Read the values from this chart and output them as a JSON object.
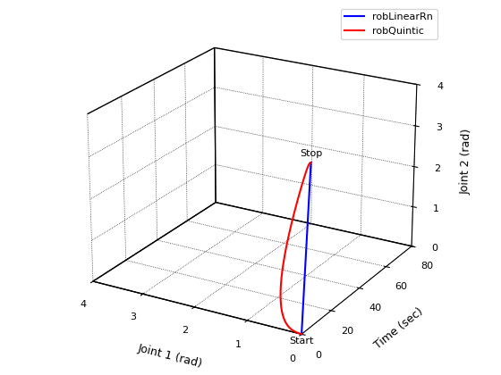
{
  "xlabel": "Joint 1 (rad)",
  "ylabel": "Time (sec)",
  "zlabel": "Joint 2 (rad)",
  "xlim": [
    0,
    4
  ],
  "ylim": [
    0,
    80
  ],
  "zlim": [
    0,
    4
  ],
  "xticks": [
    0,
    1,
    2,
    3,
    4
  ],
  "yticks": [
    0,
    20,
    40,
    60,
    80
  ],
  "zticks": [
    0,
    1,
    2,
    3,
    4
  ],
  "legend_labels": [
    "robLinearRn",
    "robQuintic"
  ],
  "line_colors": [
    "blue",
    "red"
  ],
  "start_label": "Start",
  "stop_label": "Stop",
  "t_total": 5.0,
  "n_points": 200,
  "joint1_start": 0.0,
  "joint1_end": 0.0,
  "joint2_start": 0.0,
  "joint2_end": 3.8,
  "background_color": "white",
  "elev": 22,
  "azim": -60,
  "quintic_j1_amplitude": 0.35,
  "quintic_j2_overshoot": 0.4,
  "quintic_loop_time": 2.5
}
